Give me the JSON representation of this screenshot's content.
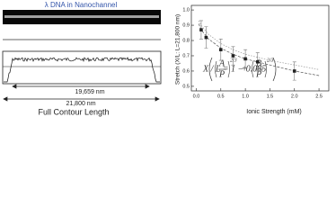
{
  "image_label": "λ DNA in Nanochannel",
  "profile": {
    "measured_length": "19,659 nm",
    "contour_length": "21,800 nm",
    "caption": "Full Contour Length"
  },
  "equation": {
    "lhs": "X / L = 1 − 0.085",
    "a": "A",
    "b": "B",
    "p": "P",
    "exponent": "2/3",
    "plus": "+"
  },
  "chart_data": {
    "type": "scatter",
    "xlabel": "Ionic Strength (mM)",
    "ylabel": "Stretch (X/L: L=21,800 nm)",
    "xlim": [
      -0.1,
      2.7
    ],
    "ylim": [
      0.47,
      1.03
    ],
    "xticks": [
      {
        "value": 0,
        "label": "0.0"
      },
      0.5,
      {
        "value": 1,
        "label": "1.0"
      },
      1.5,
      {
        "value": 2,
        "label": "2.0"
      },
      2.5
    ],
    "yticks": [
      0.5,
      0.6,
      0.7,
      0.8,
      0.9,
      {
        "value": 1,
        "label": "1.0"
      }
    ],
    "series": [
      {
        "color": "#222",
        "x": [
          0.1,
          0.2,
          0.5,
          0.75,
          1.0,
          1.25,
          2.0
        ],
        "values": [
          0.87,
          0.82,
          0.74,
          0.7,
          0.68,
          0.66,
          0.6
        ],
        "errors": [
          0.06,
          0.07,
          0.07,
          0.06,
          0.06,
          0.06,
          0.06
        ]
      }
    ],
    "fits": [
      {
        "color": "#555",
        "x": [
          0.05,
          0.1,
          0.25,
          0.5,
          0.75,
          1.0,
          1.5,
          2.0,
          2.5
        ],
        "values": [
          0.91,
          0.87,
          0.81,
          0.75,
          0.71,
          0.68,
          0.64,
          0.6,
          0.57
        ]
      },
      {
        "color": "#999",
        "x": [
          0.05,
          0.1,
          0.25,
          0.5,
          0.75,
          1.0,
          1.5,
          2.0,
          2.5
        ],
        "values": [
          0.93,
          0.9,
          0.84,
          0.78,
          0.74,
          0.71,
          0.67,
          0.64,
          0.61
        ]
      }
    ]
  }
}
